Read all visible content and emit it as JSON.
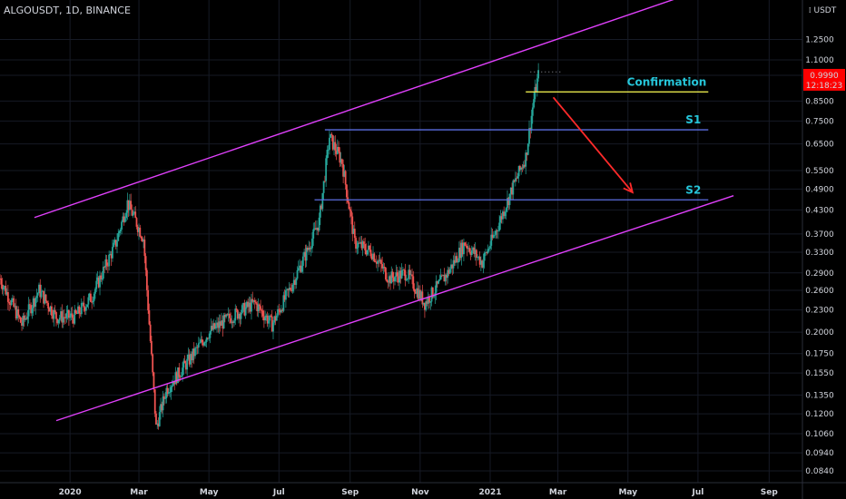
{
  "header": {
    "symbol": "ALGOUSDT, 1D, BINANCE"
  },
  "price_axis": {
    "currency": "USDT",
    "current_price": "0.9990",
    "countdown": "12:18:23"
  },
  "colors": {
    "background": "#000000",
    "up_candle": "#26a69a",
    "down_candle": "#ef5350",
    "channel": "#e040fb",
    "support": "#5b6ee1",
    "confirmation": "#e6e64c",
    "arrow": "#ff2a2a",
    "label_text": "#26c6da",
    "price_tag": "#ff0000"
  },
  "chart_data": {
    "type": "candlestick",
    "title": "",
    "xlabel": "",
    "ylabel": "",
    "y_scale": "log",
    "ylim": [
      0.078,
      1.6
    ],
    "x_range": [
      "2019-11-01",
      "2021-09-30"
    ],
    "grid": true,
    "y_ticks": [
      "1.2500",
      "1.1000",
      "0.9990",
      "0.8500",
      "0.7500",
      "0.6500",
      "0.5500",
      "0.4900",
      "0.4300",
      "0.3700",
      "0.3300",
      "0.2900",
      "0.2600",
      "0.2300",
      "0.2000",
      "0.1750",
      "0.1550",
      "0.1350",
      "0.1200",
      "0.1060",
      "0.0940",
      "0.0840"
    ],
    "x_ticks": [
      {
        "label": "2020",
        "date": "2020-01-01"
      },
      {
        "label": "Mar",
        "date": "2020-03-01"
      },
      {
        "label": "May",
        "date": "2020-05-01"
      },
      {
        "label": "Jul",
        "date": "2020-07-01"
      },
      {
        "label": "Sep",
        "date": "2020-09-01"
      },
      {
        "label": "Nov",
        "date": "2020-11-01"
      },
      {
        "label": "2021",
        "date": "2021-01-01"
      },
      {
        "label": "Mar",
        "date": "2021-03-01"
      },
      {
        "label": "May",
        "date": "2021-05-01"
      },
      {
        "label": "Jul",
        "date": "2021-07-01"
      },
      {
        "label": "Sep",
        "date": "2021-09-01"
      }
    ],
    "price_keypoints": [
      {
        "date": "2019-11-01",
        "price": 0.28
      },
      {
        "date": "2019-11-20",
        "price": 0.21
      },
      {
        "date": "2019-12-05",
        "price": 0.26
      },
      {
        "date": "2019-12-20",
        "price": 0.22
      },
      {
        "date": "2020-01-05",
        "price": 0.22
      },
      {
        "date": "2020-01-20",
        "price": 0.25
      },
      {
        "date": "2020-02-10",
        "price": 0.35
      },
      {
        "date": "2020-02-20",
        "price": 0.45
      },
      {
        "date": "2020-03-05",
        "price": 0.36
      },
      {
        "date": "2020-03-12",
        "price": 0.17
      },
      {
        "date": "2020-03-16",
        "price": 0.11
      },
      {
        "date": "2020-03-25",
        "price": 0.14
      },
      {
        "date": "2020-04-15",
        "price": 0.17
      },
      {
        "date": "2020-05-01",
        "price": 0.2
      },
      {
        "date": "2020-05-20",
        "price": 0.22
      },
      {
        "date": "2020-06-10",
        "price": 0.24
      },
      {
        "date": "2020-06-25",
        "price": 0.21
      },
      {
        "date": "2020-07-10",
        "price": 0.26
      },
      {
        "date": "2020-07-25",
        "price": 0.33
      },
      {
        "date": "2020-08-05",
        "price": 0.4
      },
      {
        "date": "2020-08-14",
        "price": 0.68
      },
      {
        "date": "2020-08-25",
        "price": 0.58
      },
      {
        "date": "2020-09-05",
        "price": 0.35
      },
      {
        "date": "2020-09-20",
        "price": 0.33
      },
      {
        "date": "2020-10-05",
        "price": 0.28
      },
      {
        "date": "2020-10-20",
        "price": 0.29
      },
      {
        "date": "2020-11-05",
        "price": 0.24
      },
      {
        "date": "2020-11-25",
        "price": 0.29
      },
      {
        "date": "2020-12-10",
        "price": 0.35
      },
      {
        "date": "2020-12-25",
        "price": 0.31
      },
      {
        "date": "2021-01-05",
        "price": 0.37
      },
      {
        "date": "2021-01-20",
        "price": 0.49
      },
      {
        "date": "2021-02-01",
        "price": 0.6
      },
      {
        "date": "2021-02-08",
        "price": 0.86
      },
      {
        "date": "2021-02-12",
        "price": 0.999
      }
    ],
    "annotations": {
      "confirmation": {
        "label": "Confirmation",
        "price": 0.9,
        "from": "2021-02-01",
        "to": "2021-07-10"
      },
      "s1": {
        "label": "S1",
        "price": 0.71,
        "from": "2020-08-10",
        "to": "2021-07-10"
      },
      "s2": {
        "label": "S2",
        "price": 0.458,
        "from": "2020-08-01",
        "to": "2021-07-10"
      },
      "prior_high_marker": {
        "price": 1.02,
        "from": "2021-02-05",
        "to": "2021-03-05"
      },
      "channel_upper": [
        {
          "date": "2019-12-01",
          "price": 0.41
        },
        {
          "date": "2021-07-15",
          "price": 1.75
        }
      ],
      "channel_lower": [
        {
          "date": "2019-12-20",
          "price": 0.115
        },
        {
          "date": "2021-08-01",
          "price": 0.47
        }
      ],
      "projection_arrow": [
        {
          "date": "2021-02-25",
          "price": 0.87
        },
        {
          "date": "2021-05-05",
          "price": 0.48
        }
      ]
    }
  }
}
